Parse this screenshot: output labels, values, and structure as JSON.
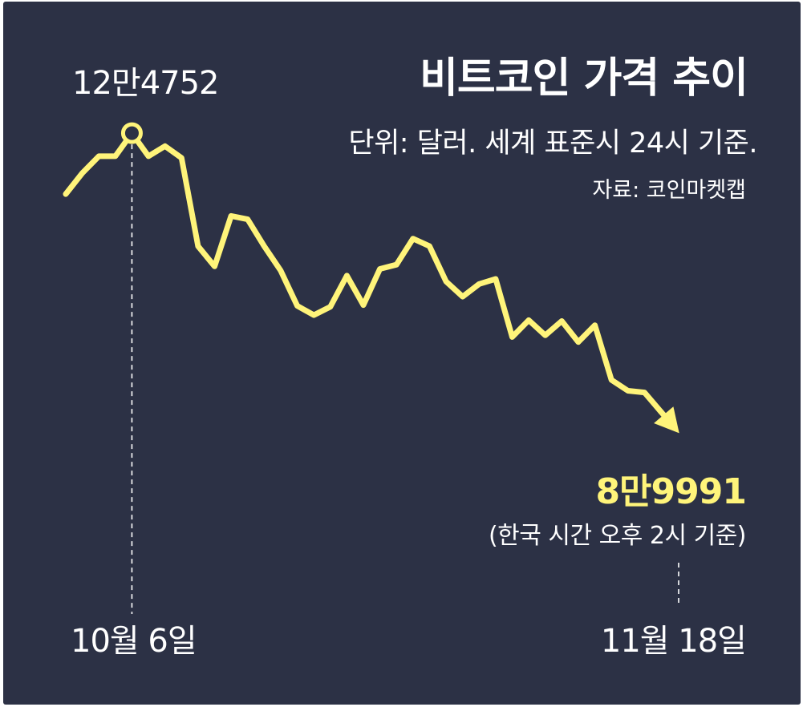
{
  "colors": {
    "background": "#2c3145",
    "line": "#fff47a",
    "text": "#ffffff"
  },
  "chart_data": {
    "type": "line",
    "title": "비트코인 가격 추이",
    "subtitle": "단위: 달러. 세계 표준시 24시 기준.",
    "source": "자료: 코인마켓캡",
    "x_tick_labels": [
      "10월 6일",
      "11월 18일"
    ],
    "peak": {
      "label": "12만4752",
      "value": 124752,
      "date": "10월 6일"
    },
    "end": {
      "label": "8만9991",
      "value": 89991,
      "note": "(한국 시간 오후 2시 기준)",
      "date": "11월 18일"
    },
    "ylim": [
      87000,
      128000
    ],
    "series": [
      {
        "values": [
          117500,
          120000,
          122000,
          122000,
          124752,
          122000,
          123200,
          121800,
          111300,
          108900,
          114900,
          114500,
          111300,
          108400,
          104200,
          103100,
          104100,
          107800,
          104300,
          108600,
          109100,
          112200,
          111300,
          107100,
          105300,
          106800,
          107400,
          100500,
          102500,
          100700,
          102400,
          99900,
          101900,
          95400,
          94100,
          93900,
          91600
        ]
      }
    ],
    "grid": false,
    "legend": "none"
  }
}
